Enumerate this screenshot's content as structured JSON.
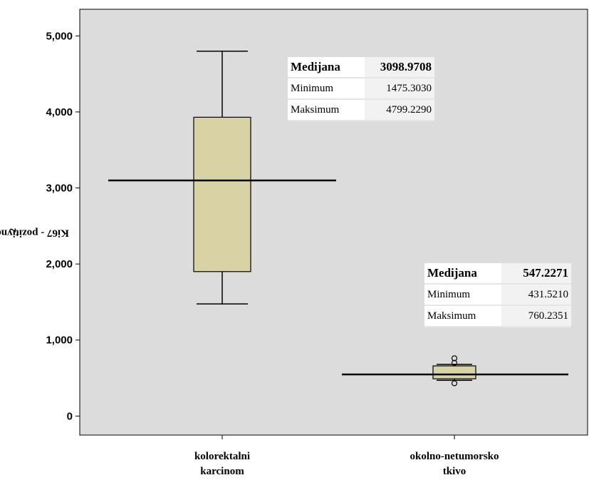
{
  "chart_data": {
    "type": "boxplot",
    "ylabel": "Ki67 - pozitivne ćelije /mm",
    "ylabel_superscript": "2",
    "ylim": [
      -250,
      5350
    ],
    "yticks": [
      0,
      1000,
      2000,
      3000,
      4000,
      5000
    ],
    "ytick_labels": [
      "0",
      "1,000",
      "2,000",
      "3,000",
      "4,000",
      "5,000"
    ],
    "categories": [
      {
        "label_lines": [
          "kolorektalni",
          "karcinom"
        ]
      },
      {
        "label_lines": [
          "okolno-netumorsko",
          "tkivo"
        ]
      }
    ],
    "boxes": [
      {
        "q1": 1900,
        "median": 3098.9708,
        "q3": 3930,
        "whisker_low": 1475.303,
        "whisker_high": 4799.229,
        "outliers": []
      },
      {
        "q1": 490,
        "median": 547.2271,
        "q3": 660,
        "whisker_low": 470,
        "whisker_high": 680,
        "outliers": [
          760.2351,
          700,
          431.521
        ]
      }
    ],
    "box_color": "#d8d2a4",
    "plot_bg": "#dcdcdc",
    "grid": false
  },
  "tables": [
    {
      "rows": [
        {
          "label": "Medijana",
          "value": "3098.9708"
        },
        {
          "label": "Minimum",
          "value": "1475.3030"
        },
        {
          "label": "Maksimum",
          "value": "4799.2290"
        }
      ]
    },
    {
      "rows": [
        {
          "label": "Medijana",
          "value": "547.2271"
        },
        {
          "label": "Minimum",
          "value": "431.5210"
        },
        {
          "label": "Maksimum",
          "value": "760.2351"
        }
      ]
    }
  ]
}
